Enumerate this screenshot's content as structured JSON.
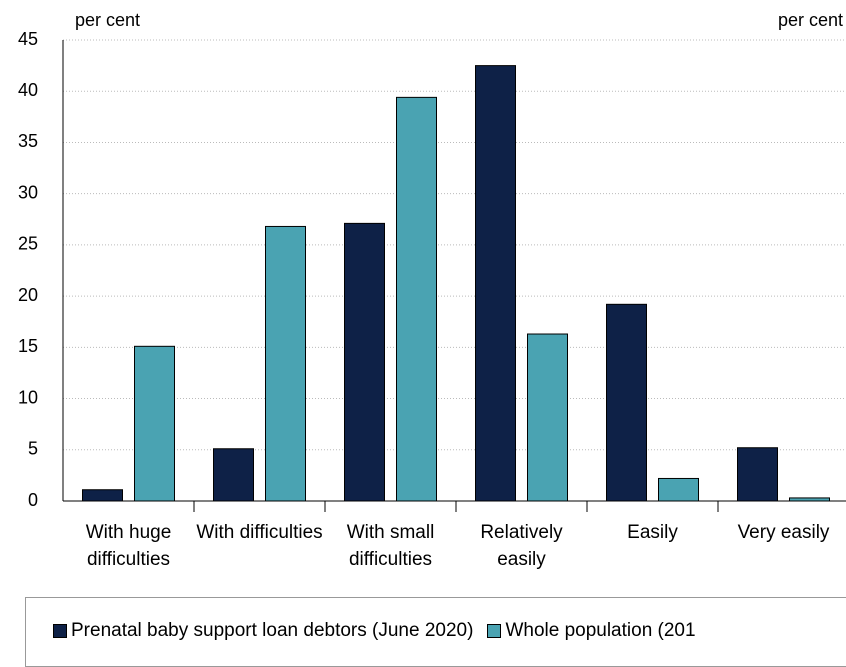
{
  "chart_data": {
    "type": "bar",
    "y_unit_left": "per cent",
    "y_unit_right": "per cent",
    "categories": [
      "With huge difficulties",
      "With difficulties",
      "With small difficulties",
      "Relatively easily",
      "Easily",
      "Very easily"
    ],
    "series": [
      {
        "name": "Prenatal baby support loan debtors (June 2020)",
        "color": "#0e2147",
        "values": [
          1.1,
          5.1,
          27.1,
          42.5,
          19.2,
          5.2
        ]
      },
      {
        "name": "Whole population (201",
        "color": "#4aa3b2",
        "values": [
          15.1,
          26.8,
          39.4,
          16.3,
          2.2,
          0.3
        ]
      }
    ],
    "ylim": [
      0,
      45
    ],
    "yticks": [
      0,
      5,
      10,
      15,
      20,
      25,
      30,
      35,
      40,
      45
    ],
    "grid": true
  }
}
